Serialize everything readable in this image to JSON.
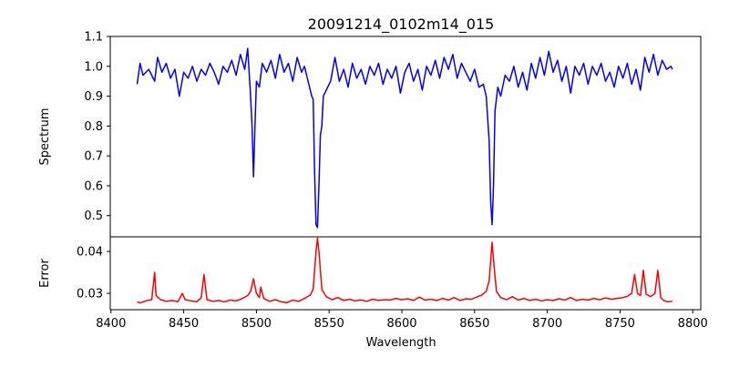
{
  "chart_data": [
    {
      "type": "line",
      "title": "20091214_0102m14_015",
      "xlabel": "",
      "ylabel": "Spectrum",
      "xlim": [
        8399.5,
        8805.5
      ],
      "ylim": [
        0.429,
        1.1
      ],
      "yticks": [
        "0.5",
        "0.6",
        "0.7",
        "0.8",
        "0.9",
        "1.0",
        "1.1"
      ],
      "grid": false,
      "color": "#0000ff",
      "x": [
        8418,
        8420,
        8422,
        8426,
        8430,
        8432,
        8435,
        8438,
        8441,
        8444,
        8447,
        8450,
        8453,
        8456,
        8459,
        8462,
        8465,
        8468,
        8471,
        8474,
        8477,
        8480,
        8483,
        8486,
        8489,
        8492,
        8494,
        8496,
        8497,
        8498,
        8499,
        8500,
        8502,
        8504,
        8507,
        8510,
        8513,
        8516,
        8519,
        8522,
        8525,
        8528,
        8531,
        8533,
        8536,
        8538,
        8539,
        8540,
        8541,
        8542,
        8543,
        8544,
        8545,
        8546,
        8548,
        8551,
        8554,
        8557,
        8560,
        8563,
        8566,
        8569,
        8572,
        8575,
        8578,
        8581,
        8584,
        8587,
        8590,
        8593,
        8596,
        8599,
        8602,
        8605,
        8608,
        8611,
        8614,
        8617,
        8620,
        8623,
        8626,
        8629,
        8632,
        8635,
        8638,
        8641,
        8644,
        8647,
        8650,
        8653,
        8656,
        8658,
        8660,
        8661,
        8662,
        8663,
        8664,
        8666,
        8668,
        8671,
        8674,
        8677,
        8680,
        8683,
        8686,
        8689,
        8692,
        8695,
        8698,
        8701,
        8704,
        8707,
        8710,
        8713,
        8716,
        8719,
        8722,
        8725,
        8728,
        8731,
        8734,
        8737,
        8740,
        8743,
        8746,
        8749,
        8752,
        8755,
        8758,
        8761,
        8764,
        8767,
        8770,
        8773,
        8776,
        8779,
        8782,
        8785,
        8786
      ],
      "y": [
        0.94,
        1.01,
        0.97,
        0.99,
        0.95,
        1.03,
        0.98,
        1.01,
        0.96,
        0.99,
        0.9,
        0.98,
        0.96,
        1.0,
        0.95,
        0.99,
        0.97,
        1.01,
        0.98,
        0.94,
        1.0,
        0.98,
        1.02,
        0.97,
        1.04,
        0.99,
        1.06,
        0.9,
        0.8,
        0.63,
        0.8,
        0.95,
        0.93,
        1.01,
        0.98,
        1.02,
        0.96,
        1.04,
        0.98,
        1.01,
        0.95,
        1.03,
        0.98,
        1.0,
        0.94,
        0.9,
        0.89,
        0.65,
        0.47,
        0.46,
        0.6,
        0.77,
        0.8,
        0.9,
        0.92,
        0.95,
        1.03,
        0.95,
        0.99,
        0.93,
        1.01,
        0.96,
        0.99,
        0.94,
        1.0,
        0.97,
        1.01,
        0.94,
        0.99,
        0.96,
        1.0,
        0.91,
        0.98,
        1.01,
        0.95,
        0.99,
        0.92,
        1.0,
        0.97,
        1.02,
        0.96,
        1.03,
        0.99,
        1.04,
        0.96,
        1.01,
        0.98,
        0.95,
        0.99,
        0.93,
        0.94,
        0.9,
        0.75,
        0.55,
        0.47,
        0.6,
        0.85,
        0.93,
        0.9,
        0.97,
        0.95,
        1.0,
        0.93,
        0.98,
        0.92,
        1.01,
        0.96,
        1.03,
        0.97,
        1.05,
        0.98,
        1.02,
        0.95,
        1.0,
        0.91,
        1.0,
        0.97,
        1.01,
        0.94,
        1.0,
        0.97,
        1.01,
        0.95,
        0.98,
        0.93,
        1.0,
        0.96,
        1.01,
        0.94,
        0.99,
        0.92,
        1.03,
        0.98,
        1.04,
        0.97,
        1.02,
        0.99,
        1.0,
        0.99
      ]
    },
    {
      "type": "line",
      "title": "",
      "xlabel": "Wavelength",
      "ylabel": "Error",
      "xlim": [
        8399.5,
        8805.5
      ],
      "ylim": [
        0.0261,
        0.0435
      ],
      "xticks": [
        "8400",
        "8450",
        "8500",
        "8550",
        "8600",
        "8650",
        "8700",
        "8750",
        "8800"
      ],
      "yticks": [
        "0.03",
        "0.04"
      ],
      "grid": false,
      "color": "#ff0000",
      "x": [
        8418,
        8420,
        8424,
        8428,
        8430,
        8431,
        8434,
        8438,
        8442,
        8446,
        8449,
        8451,
        8455,
        8459,
        8462,
        8464,
        8466,
        8470,
        8474,
        8478,
        8482,
        8486,
        8490,
        8494,
        8496,
        8498,
        8500,
        8502,
        8503,
        8505,
        8509,
        8513,
        8517,
        8521,
        8525,
        8529,
        8533,
        8537,
        8539,
        8541,
        8542,
        8543,
        8545,
        8548,
        8552,
        8556,
        8560,
        8564,
        8568,
        8572,
        8576,
        8580,
        8584,
        8588,
        8592,
        8596,
        8600,
        8604,
        8608,
        8612,
        8616,
        8620,
        8624,
        8628,
        8632,
        8636,
        8640,
        8644,
        8648,
        8652,
        8655,
        8658,
        8660,
        8662,
        8663,
        8665,
        8668,
        8672,
        8676,
        8680,
        8684,
        8688,
        8692,
        8696,
        8700,
        8704,
        8708,
        8712,
        8716,
        8720,
        8724,
        8728,
        8732,
        8736,
        8740,
        8744,
        8748,
        8752,
        8755,
        8758,
        8760,
        8762,
        8764,
        8766,
        8768,
        8771,
        8774,
        8776,
        8778,
        8780,
        8783,
        8786
      ],
      "y": [
        0.028,
        0.0277,
        0.0282,
        0.0285,
        0.035,
        0.0295,
        0.0285,
        0.0281,
        0.0283,
        0.028,
        0.03,
        0.0285,
        0.0282,
        0.028,
        0.029,
        0.0345,
        0.0285,
        0.0281,
        0.0283,
        0.028,
        0.0284,
        0.0282,
        0.0287,
        0.0295,
        0.0305,
        0.0335,
        0.03,
        0.029,
        0.0315,
        0.0288,
        0.0281,
        0.0285,
        0.028,
        0.0278,
        0.0284,
        0.0281,
        0.0288,
        0.0296,
        0.031,
        0.04,
        0.0432,
        0.04,
        0.031,
        0.0292,
        0.0285,
        0.029,
        0.0283,
        0.0286,
        0.0282,
        0.0284,
        0.0281,
        0.0286,
        0.0283,
        0.0285,
        0.0284,
        0.0288,
        0.0285,
        0.0287,
        0.0283,
        0.0291,
        0.0284,
        0.0286,
        0.0283,
        0.0288,
        0.0284,
        0.029,
        0.0283,
        0.0287,
        0.0286,
        0.0292,
        0.0296,
        0.0305,
        0.033,
        0.0422,
        0.038,
        0.0305,
        0.029,
        0.0285,
        0.0292,
        0.0284,
        0.0288,
        0.0283,
        0.0286,
        0.0282,
        0.0285,
        0.0283,
        0.0287,
        0.0284,
        0.029,
        0.0283,
        0.0286,
        0.0284,
        0.0288,
        0.0285,
        0.0289,
        0.0286,
        0.0288,
        0.029,
        0.0293,
        0.03,
        0.0345,
        0.03,
        0.0295,
        0.0355,
        0.0298,
        0.0292,
        0.03,
        0.0355,
        0.029,
        0.0283,
        0.028,
        0.0281
      ]
    }
  ]
}
